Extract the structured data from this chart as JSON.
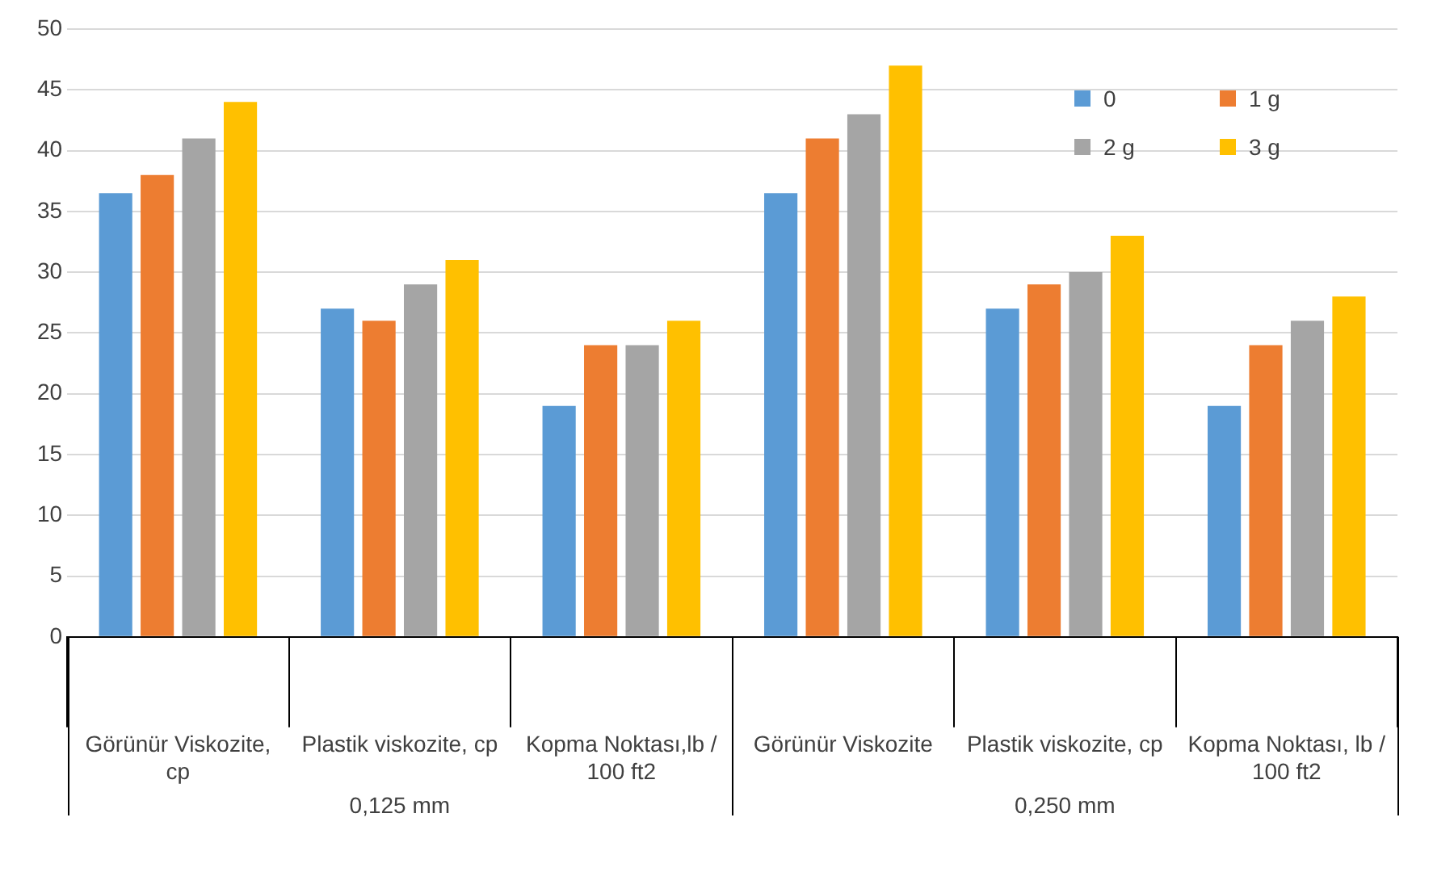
{
  "chart_data": {
    "type": "bar",
    "categories": [
      "Görünür Viskozite, cp",
      "Plastik viskozite, cp",
      "Kopma Noktası,lb / 100 ft2",
      "Görünür Viskozite",
      "Plastik viskozite, cp",
      "Kopma Noktası, lb / 100 ft2"
    ],
    "series": [
      {
        "name": "0",
        "color": "#5b9bd5",
        "values": [
          36.5,
          27,
          19,
          36.5,
          27,
          19
        ]
      },
      {
        "name": "1 g",
        "color": "#ed7d31",
        "values": [
          38,
          26,
          24,
          41,
          29,
          24
        ]
      },
      {
        "name": "2 g",
        "color": "#a5a5a5",
        "values": [
          41,
          29,
          24,
          43,
          30,
          26
        ]
      },
      {
        "name": "3 g",
        "color": "#ffc000",
        "values": [
          44,
          31,
          26,
          47,
          33,
          28
        ]
      }
    ],
    "ylim": [
      0,
      50
    ],
    "yticks": [
      0,
      5,
      10,
      15,
      20,
      25,
      30,
      35,
      40,
      45,
      50
    ],
    "grid": "y",
    "legend": "top right",
    "annotations": [
      "0,125 mm",
      "0,250 mm"
    ]
  }
}
